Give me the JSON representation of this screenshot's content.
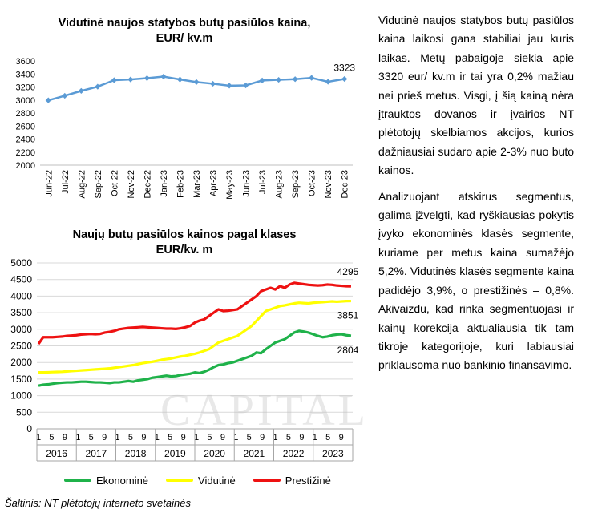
{
  "charts": {
    "top": {
      "title_line1": "Vidutinė naujos statybos butų pasiūlos kaina,",
      "title_line2": "EUR/ kv.m"
    },
    "bottom": {
      "title_line1": "Naujų butų pasiūlos kainos pagal klases",
      "title_line2": "EUR/kv. m"
    }
  },
  "watermark": "CAPITAL",
  "source": "Šaltinis: NT plėtotojų interneto svetainės",
  "article": {
    "paragraph1": "Vidutinė naujos statybos butų pasiūlos kaina laikosi gana stabiliai jau kuris laikas. Metų pabaigoje siekia apie 3320 eur/ kv.m ir tai yra 0,2% mažiau nei prieš metus. Visgi, į šią kainą nėra įtrauktos dovanos ir įvairios NT plėtotojų skelbiamos akcijos, kurios dažniausiai sudaro apie 2-3% nuo buto kainos.",
    "paragraph2": "Analizuojant atskirus segmentus, galima įžvelgti, kad ryškiausias pokytis įvyko ekonominės klasės segmente, kuriame per metus kaina sumažėjo 5,2%. Vidutinės klasės segmente kaina padidėjo 3,9%, o prestižinės – 0,8%. Akivaizdu, kad rinka segmentuojasi ir kainų korekcija aktualiausia tik tam tikroje kategorijoje, kuri labiausiai priklausoma nuo bankinio finansavimo."
  },
  "chart_data": [
    {
      "type": "line",
      "title": "Vidutinė naujos statybos butų pasiūlos kaina, EUR/ kv.m",
      "categories": [
        "Jun-22",
        "Jul-22",
        "Aug-22",
        "Sep-22",
        "Oct-22",
        "Nov-22",
        "Dec-22",
        "Jan-23",
        "Feb-23",
        "Mar-23",
        "Apr-23",
        "May-23",
        "Jun-23",
        "Jul-23",
        "Aug-23",
        "Sep-23",
        "Oct-23",
        "Nov-23",
        "Dec-23"
      ],
      "series": [
        {
          "values": [
            2995,
            3065,
            3140,
            3205,
            3305,
            3315,
            3335,
            3360,
            3315,
            3275,
            3250,
            3220,
            3225,
            3300,
            3310,
            3320,
            3340,
            3280,
            3323
          ],
          "color": "#5b9bd5"
        }
      ],
      "data_labels": [
        {
          "index": 18,
          "text": "3323"
        }
      ],
      "ylim": [
        2000,
        3600
      ],
      "yticks": [
        2000,
        2200,
        2400,
        2600,
        2800,
        3000,
        3200,
        3400,
        3600
      ],
      "grid": false,
      "legend": "none"
    },
    {
      "type": "line",
      "title": "Naujų butų pasiūlos kainos pagal klases EUR/kv. m",
      "years": [
        "2016",
        "2017",
        "2018",
        "2019",
        "2020",
        "2021",
        "2022",
        "2023"
      ],
      "month_ticks": [
        "1",
        "5",
        "9",
        "1",
        "5",
        "9",
        "1",
        "5",
        "9",
        "1",
        "5",
        "9",
        "1",
        "5",
        "9",
        "1",
        "5",
        "9",
        "1",
        "5",
        "9",
        "1",
        "5",
        "9"
      ],
      "x_start": "2016-01",
      "x_end": "2023-12",
      "series": [
        {
          "name": "Ekonominė",
          "color": "#1fb24a",
          "values": [
            1300,
            1330,
            1340,
            1360,
            1380,
            1390,
            1400,
            1400,
            1410,
            1420,
            1420,
            1410,
            1400,
            1400,
            1390,
            1380,
            1400,
            1400,
            1420,
            1440,
            1420,
            1460,
            1480,
            1500,
            1540,
            1560,
            1580,
            1600,
            1580,
            1590,
            1620,
            1640,
            1660,
            1700,
            1680,
            1720,
            1780,
            1860,
            1920,
            1940,
            1980,
            2000,
            2050,
            2100,
            2150,
            2200,
            2300,
            2280,
            2400,
            2500,
            2600,
            2650,
            2700,
            2800,
            2900,
            2950,
            2930,
            2900,
            2850,
            2800,
            2760,
            2780,
            2820,
            2840,
            2850,
            2820,
            2804
          ]
        },
        {
          "name": "Vidutinė",
          "color": "#ffff00",
          "values": [
            1700,
            1700,
            1705,
            1710,
            1715,
            1720,
            1730,
            1740,
            1750,
            1760,
            1770,
            1780,
            1790,
            1800,
            1810,
            1820,
            1840,
            1860,
            1880,
            1900,
            1920,
            1950,
            1980,
            2000,
            2020,
            2050,
            2080,
            2100,
            2120,
            2150,
            2180,
            2200,
            2230,
            2260,
            2300,
            2350,
            2400,
            2500,
            2600,
            2650,
            2700,
            2750,
            2800,
            2900,
            3000,
            3100,
            3250,
            3400,
            3550,
            3600,
            3650,
            3700,
            3720,
            3750,
            3780,
            3800,
            3790,
            3780,
            3800,
            3810,
            3820,
            3830,
            3840,
            3830,
            3840,
            3850,
            3851
          ]
        },
        {
          "name": "Prestižinė",
          "color": "#ee1111",
          "values": [
            2560,
            2760,
            2760,
            2760,
            2770,
            2780,
            2800,
            2810,
            2820,
            2840,
            2850,
            2860,
            2850,
            2860,
            2900,
            2920,
            2950,
            3000,
            3020,
            3040,
            3050,
            3060,
            3070,
            3060,
            3050,
            3040,
            3030,
            3020,
            3020,
            3010,
            3030,
            3060,
            3100,
            3200,
            3260,
            3300,
            3400,
            3500,
            3600,
            3550,
            3560,
            3580,
            3600,
            3700,
            3800,
            3900,
            4000,
            4150,
            4200,
            4250,
            4200,
            4300,
            4250,
            4350,
            4400,
            4380,
            4360,
            4340,
            4330,
            4320,
            4330,
            4350,
            4340,
            4320,
            4310,
            4300,
            4295
          ]
        }
      ],
      "data_labels": [
        {
          "series": "Prestižinė",
          "text": "4295"
        },
        {
          "series": "Vidutinė",
          "text": "3851"
        },
        {
          "series": "Ekonominė",
          "text": "2804"
        }
      ],
      "ylim": [
        0,
        5000
      ],
      "yticks": [
        0,
        500,
        1000,
        1500,
        2000,
        2500,
        3000,
        3500,
        4000,
        4500,
        5000
      ],
      "grid": true,
      "legend": "bottom"
    }
  ]
}
